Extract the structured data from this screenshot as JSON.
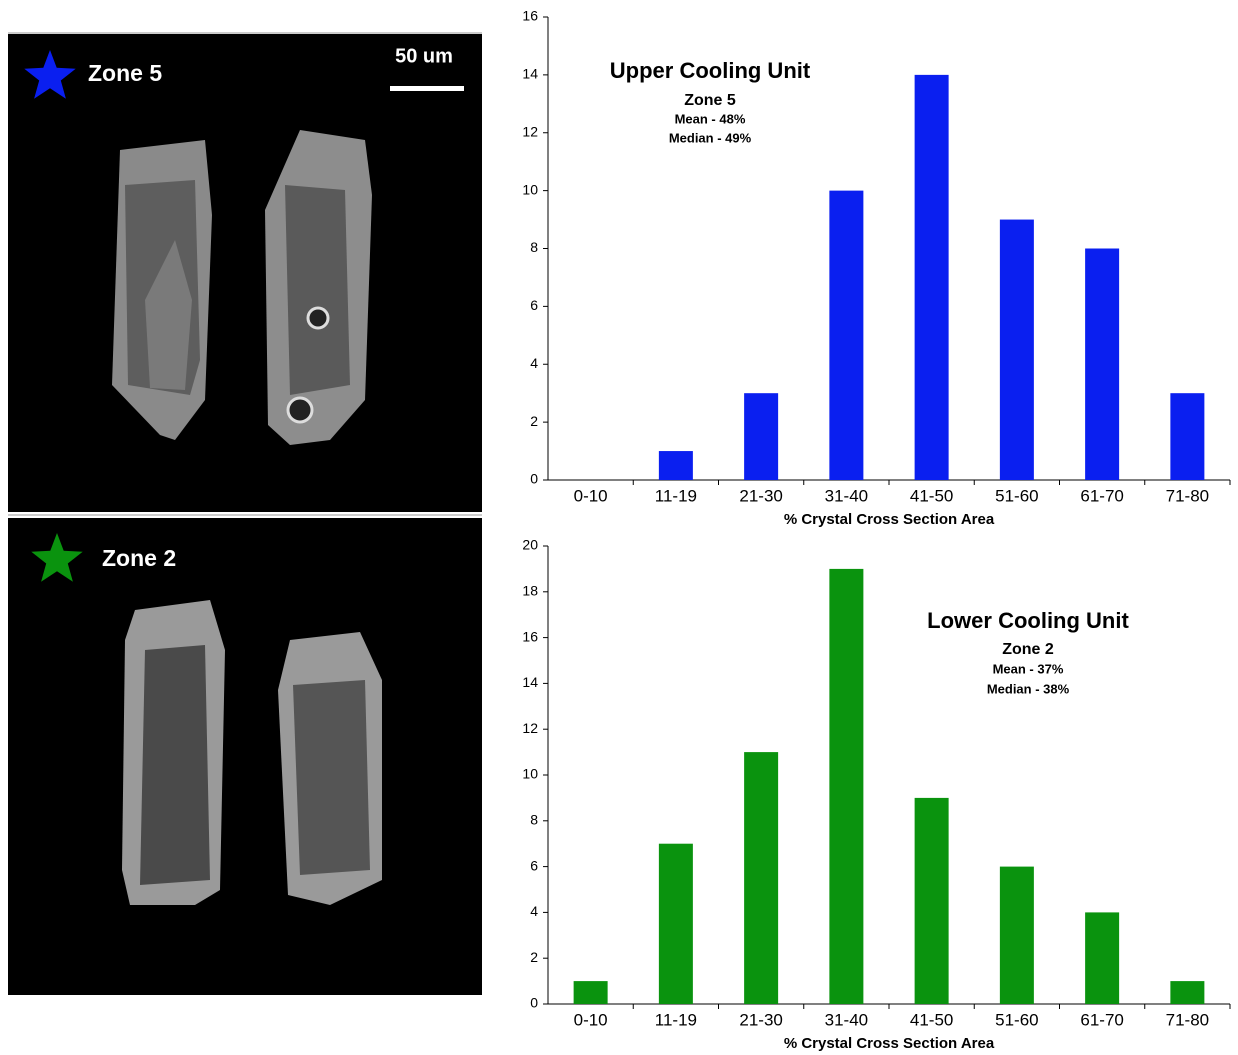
{
  "images": [
    {
      "label": "Zone 5",
      "scale_bar": "50 um"
    },
    {
      "label": "Zone 2"
    }
  ],
  "chart_data": [
    {
      "type": "bar",
      "annotations": [
        "Upper Cooling Unit",
        "Zone 5",
        "Mean - 48%",
        "Median - 49%"
      ],
      "x_label": "% Crystal Cross Section Area",
      "categories": [
        "0-10",
        "11-19",
        "21-30",
        "31-40",
        "41-50",
        "51-60",
        "61-70",
        "71-80"
      ],
      "values": [
        0,
        1,
        3,
        10,
        14,
        9,
        8,
        3
      ],
      "color": "#0a1ff0",
      "ylim": [
        0,
        16
      ],
      "yticks": [
        0,
        2,
        4,
        6,
        8,
        10,
        12,
        14,
        16
      ],
      "grid": false
    },
    {
      "type": "bar",
      "annotations": [
        "Lower Cooling Unit",
        "Zone 2",
        "Mean - 37%",
        "Median - 38%"
      ],
      "x_label": "% Crystal Cross Section Area",
      "categories": [
        "0-10",
        "11-19",
        "21-30",
        "31-40",
        "41-50",
        "51-60",
        "61-70",
        "71-80"
      ],
      "values": [
        1,
        7,
        11,
        19,
        9,
        6,
        4,
        1
      ],
      "color": "#0a930e",
      "ylim": [
        0,
        20
      ],
      "yticks": [
        0,
        2,
        4,
        6,
        8,
        10,
        12,
        14,
        16,
        18,
        20
      ],
      "grid": false
    }
  ]
}
